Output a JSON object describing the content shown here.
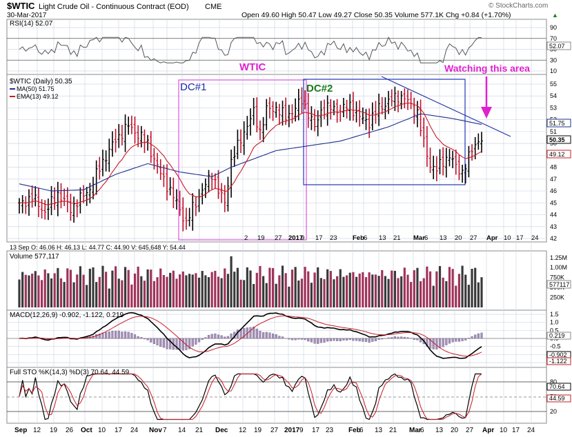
{
  "header": {
    "symbol": "$WTIC",
    "name": "Light Crude Oil - Continuous Contract (EOD)",
    "exchange": "CME",
    "date": "30-Mar-2017",
    "copyright": "© StockCharts.com",
    "ohlc": "Open 49.60  High 50.47  Low 49.27  Close 50.35  Volume 577.1K  Chg +0.84 (+1.70%)",
    "chg_arrow": "▲"
  },
  "rsi": {
    "label": "RSI(14) 52.07",
    "value_label": "52.07",
    "ticks": [
      "90",
      "70",
      "50",
      "30",
      "10"
    ]
  },
  "price": {
    "legend_title": "$WTIC (Daily) 50.35",
    "legend_ma": "MA(50) 51.75",
    "legend_ema": "EMA(13) 49.12",
    "ticks": [
      "55",
      "54",
      "53",
      "52",
      "51",
      "50",
      "49",
      "48",
      "47",
      "46",
      "45",
      "44",
      "43",
      "42"
    ],
    "tag_ma": "51.75",
    "tag_close": "50.35",
    "tag_ema": "49.12",
    "annotations": {
      "wtic": "WTIC",
      "watching": "Watching this area",
      "dc1": "DC#1",
      "dc2": "DC#2"
    },
    "info_bar": "13 Sep O: 46.06  H: 46.13  L: 44.77  C: 44.90  V: 645,648  Y: 54.44"
  },
  "volume": {
    "label": "Volume 577,117",
    "ticks": [
      "1.25M",
      "1.00M",
      "750K",
      "500K",
      "250K"
    ],
    "tag": "577117"
  },
  "macd": {
    "label_main": "MACD(12,26,9) -0.902, -1.122, 0.219",
    "ticks": [
      "1.5",
      "1.0",
      "0.5",
      "0.0",
      "-0.5",
      "-1.0",
      "-1.5"
    ],
    "tag_hist": "0.219",
    "tag_macd": "-0.902",
    "tag_signal": "-1.122"
  },
  "sto": {
    "label": "Full STO %K(14,3) %D(3) 70.64, 44.59",
    "ticks": [
      "80",
      "50",
      "20"
    ],
    "tag_k": "70.64",
    "tag_d": "44.59"
  },
  "xaxis": {
    "top": [
      "2",
      "19",
      "27",
      "2017",
      "9",
      "17",
      "23",
      "Feb",
      "6",
      "13",
      "21",
      "Mar",
      "6",
      "13",
      "20",
      "27",
      "Apr",
      "10",
      "17",
      "24"
    ],
    "bottom": [
      "Sep",
      "12",
      "19",
      "26",
      "Oct",
      "10",
      "17",
      "24",
      "Nov",
      "7",
      "14",
      "21",
      "Dec",
      "12",
      "19",
      "27",
      "2017",
      "9",
      "17",
      "23",
      "Feb",
      "6",
      "13",
      "21",
      "Mar",
      "6",
      "13",
      "20",
      "27",
      "Apr",
      "10",
      "17",
      "24"
    ]
  },
  "colors": {
    "bg": "#ffffff",
    "panel_border": "#555555",
    "grid": "#cfd8e6",
    "up_bar": "#000000",
    "down_bar": "#c0102a",
    "ma50": "#1c2f8c",
    "ema13": "#c81a24",
    "volume_up": "#3a3a3a",
    "volume_down": "#a0335a",
    "dc1_box": "#e060e0",
    "dc2_box": "#3344bb",
    "annotation_magenta": "#e020d0",
    "annotation_blue": "#1a2aa8",
    "annotation_green": "#1a7a1a"
  }
}
